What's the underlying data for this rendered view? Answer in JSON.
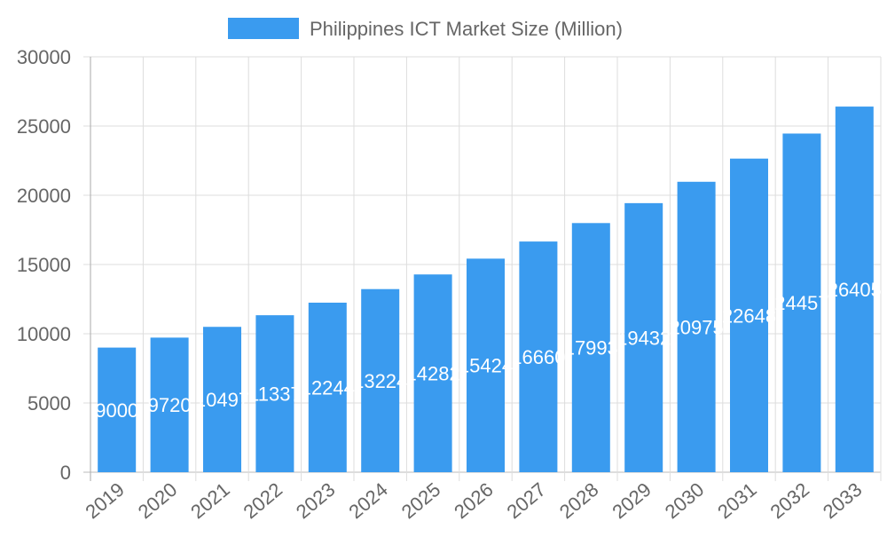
{
  "chart_data": {
    "type": "bar",
    "title": "",
    "xlabel": "",
    "ylabel": "",
    "ylim": [
      0,
      30000
    ],
    "yticks": [
      "0",
      "5000",
      "10000",
      "15000",
      "20000",
      "25000",
      "30000"
    ],
    "grid": true,
    "legend_placement": "top",
    "categories": [
      "2019",
      "2020",
      "2021",
      "2022",
      "2023",
      "2024",
      "2025",
      "2026",
      "2027",
      "2028",
      "2029",
      "2030",
      "2031",
      "2032",
      "2033"
    ],
    "series": [
      {
        "name": "Philippines ICT Market Size (Million)",
        "color": "#3a9bef",
        "values": [
          9000,
          9720,
          10497,
          11337,
          12244,
          13224,
          14282,
          15424,
          16660,
          17993,
          19432,
          20975,
          22648,
          24457,
          26405
        ]
      }
    ]
  }
}
